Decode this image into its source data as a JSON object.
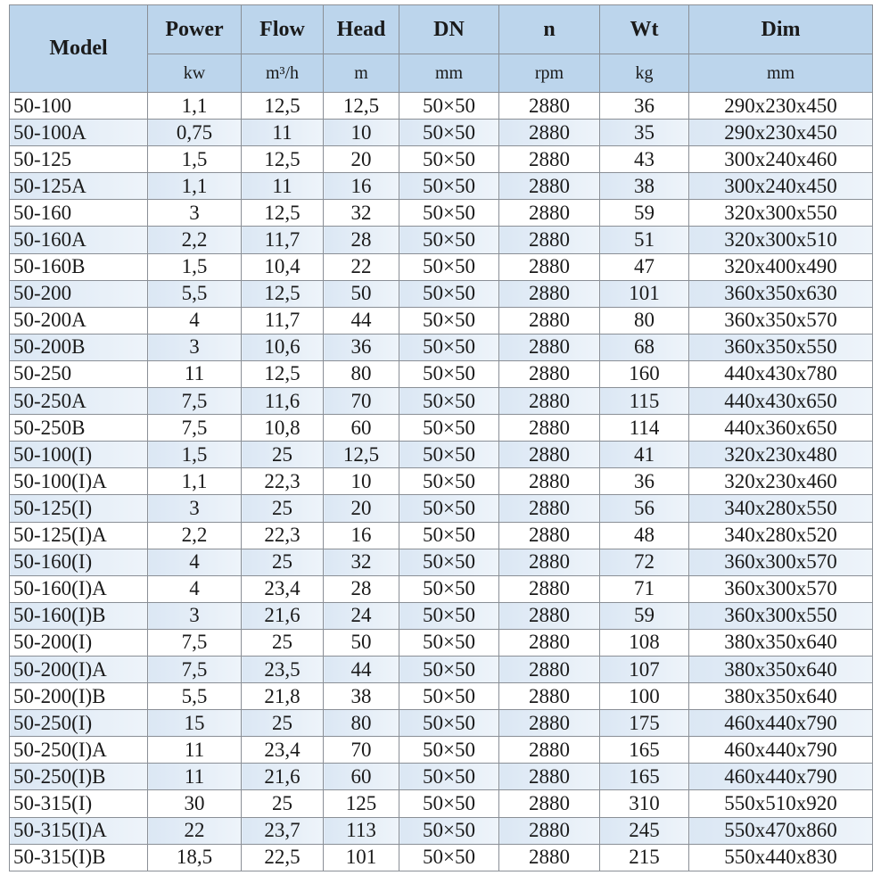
{
  "header": {
    "columns": [
      "Model",
      "Power",
      "Flow",
      "Head",
      "DN",
      "n",
      "Wt",
      "Dim"
    ],
    "units": [
      "kw",
      "m³/h",
      "m",
      "mm",
      "rpm",
      "kg",
      "mm"
    ]
  },
  "colors": {
    "header_bg": "#bcd5ec",
    "alt_row_bg": "#dbe7f4",
    "border": "#8a8f96"
  },
  "rows": [
    [
      "50-100",
      "1,1",
      "12,5",
      "12,5",
      "50×50",
      "2880",
      "36",
      "290x230x450"
    ],
    [
      "50-100A",
      "0,75",
      "11",
      "10",
      "50×50",
      "2880",
      "35",
      "290x230x450"
    ],
    [
      "50-125",
      "1,5",
      "12,5",
      "20",
      "50×50",
      "2880",
      "43",
      "300x240x460"
    ],
    [
      "50-125A",
      "1,1",
      "11",
      "16",
      "50×50",
      "2880",
      "38",
      "300x240x450"
    ],
    [
      "50-160",
      "3",
      "12,5",
      "32",
      "50×50",
      "2880",
      "59",
      "320x300x550"
    ],
    [
      "50-160A",
      "2,2",
      "11,7",
      "28",
      "50×50",
      "2880",
      "51",
      "320x300x510"
    ],
    [
      "50-160B",
      "1,5",
      "10,4",
      "22",
      "50×50",
      "2880",
      "47",
      "320x400x490"
    ],
    [
      "50-200",
      "5,5",
      "12,5",
      "50",
      "50×50",
      "2880",
      "101",
      "360x350x630"
    ],
    [
      "50-200A",
      "4",
      "11,7",
      "44",
      "50×50",
      "2880",
      "80",
      "360x350x570"
    ],
    [
      "50-200B",
      "3",
      "10,6",
      "36",
      "50×50",
      "2880",
      "68",
      "360x350x550"
    ],
    [
      "50-250",
      "11",
      "12,5",
      "80",
      "50×50",
      "2880",
      "160",
      "440x430x780"
    ],
    [
      "50-250A",
      "7,5",
      "11,6",
      "70",
      "50×50",
      "2880",
      "115",
      "440x430x650"
    ],
    [
      "50-250B",
      "7,5",
      "10,8",
      "60",
      "50×50",
      "2880",
      "114",
      "440x360x650"
    ],
    [
      "50-100(I)",
      "1,5",
      "25",
      "12,5",
      "50×50",
      "2880",
      "41",
      "320x230x480"
    ],
    [
      "50-100(I)A",
      "1,1",
      "22,3",
      "10",
      "50×50",
      "2880",
      "36",
      "320x230x460"
    ],
    [
      "50-125(I)",
      "3",
      "25",
      "20",
      "50×50",
      "2880",
      "56",
      "340x280x550"
    ],
    [
      "50-125(I)A",
      "2,2",
      "22,3",
      "16",
      "50×50",
      "2880",
      "48",
      "340x280x520"
    ],
    [
      "50-160(I)",
      "4",
      "25",
      "32",
      "50×50",
      "2880",
      "72",
      "360x300x570"
    ],
    [
      "50-160(I)A",
      "4",
      "23,4",
      "28",
      "50×50",
      "2880",
      "71",
      "360x300x570"
    ],
    [
      "50-160(I)B",
      "3",
      "21,6",
      "24",
      "50×50",
      "2880",
      "59",
      "360x300x550"
    ],
    [
      "50-200(I)",
      "7,5",
      "25",
      "50",
      "50×50",
      "2880",
      "108",
      "380x350x640"
    ],
    [
      "50-200(I)A",
      "7,5",
      "23,5",
      "44",
      "50×50",
      "2880",
      "107",
      "380x350x640"
    ],
    [
      "50-200(I)B",
      "5,5",
      "21,8",
      "38",
      "50×50",
      "2880",
      "100",
      "380x350x640"
    ],
    [
      "50-250(I)",
      "15",
      "25",
      "80",
      "50×50",
      "2880",
      "175",
      "460x440x790"
    ],
    [
      "50-250(I)A",
      "11",
      "23,4",
      "70",
      "50×50",
      "2880",
      "165",
      "460x440x790"
    ],
    [
      "50-250(I)B",
      "11",
      "21,6",
      "60",
      "50×50",
      "2880",
      "165",
      "460x440x790"
    ],
    [
      "50-315(I)",
      "30",
      "25",
      "125",
      "50×50",
      "2880",
      "310",
      "550x510x920"
    ],
    [
      "50-315(I)A",
      "22",
      "23,7",
      "113",
      "50×50",
      "2880",
      "245",
      "550x470x860"
    ],
    [
      "50-315(I)B",
      "18,5",
      "22,5",
      "101",
      "50×50",
      "2880",
      "215",
      "550x440x830"
    ]
  ]
}
